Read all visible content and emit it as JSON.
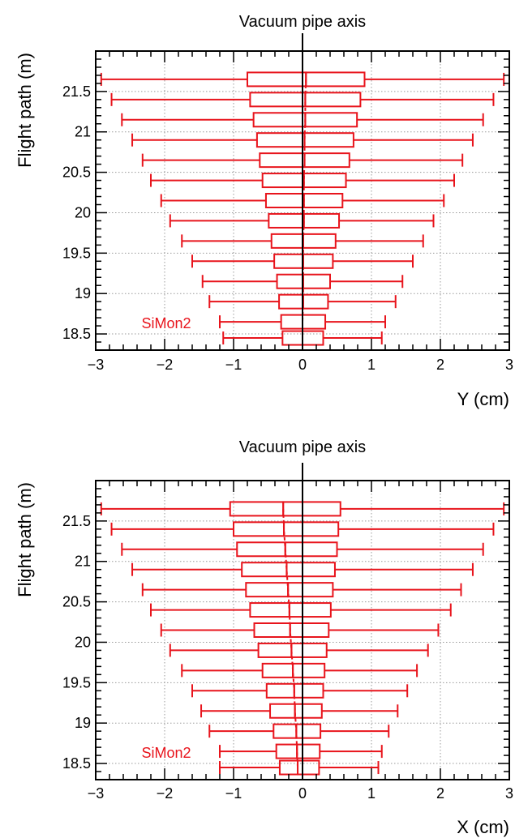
{
  "colors": {
    "series": "#e8141c",
    "axis": "#000000",
    "grid": "#9a9a9a"
  },
  "chart_data": [
    {
      "type": "box",
      "panel": "top",
      "annotation_top": "Vacuum pipe axis",
      "xlabel": "Y (cm)",
      "ylabel": "Flight path (m)",
      "xlim": [
        -3,
        3
      ],
      "ylim": [
        18.3,
        22.0
      ],
      "xticks": [
        -3,
        -2,
        -1,
        0,
        1,
        2,
        3
      ],
      "xtick_labels": [
        "−3",
        "−2",
        "−1",
        "0",
        "1",
        "2",
        "3"
      ],
      "yticks": [
        18.5,
        19,
        19.5,
        20,
        20.5,
        21,
        21.5
      ],
      "ytick_labels": [
        "18.5",
        "19",
        "19.5",
        "20",
        "20.5",
        "21",
        "21.5"
      ],
      "grid": true,
      "reference_line_x": 0,
      "series_label": "SiMon2",
      "boxes": [
        {
          "y": 21.65,
          "whisker_low": -2.92,
          "q1": -0.8,
          "median": 0.05,
          "q3": 0.9,
          "whisker_high": 2.92
        },
        {
          "y": 21.4,
          "whisker_low": -2.77,
          "q1": -0.76,
          "median": 0.04,
          "q3": 0.84,
          "whisker_high": 2.77
        },
        {
          "y": 21.15,
          "whisker_low": -2.62,
          "q1": -0.71,
          "median": 0.04,
          "q3": 0.79,
          "whisker_high": 2.62
        },
        {
          "y": 20.9,
          "whisker_low": -2.47,
          "q1": -0.66,
          "median": 0.03,
          "q3": 0.74,
          "whisker_high": 2.47
        },
        {
          "y": 20.65,
          "whisker_low": -2.32,
          "q1": -0.62,
          "median": 0.03,
          "q3": 0.68,
          "whisker_high": 2.32
        },
        {
          "y": 20.4,
          "whisker_low": -2.2,
          "q1": -0.58,
          "median": 0.02,
          "q3": 0.63,
          "whisker_high": 2.2
        },
        {
          "y": 20.15,
          "whisker_low": -2.05,
          "q1": -0.53,
          "median": 0.02,
          "q3": 0.58,
          "whisker_high": 2.05
        },
        {
          "y": 19.9,
          "whisker_low": -1.92,
          "q1": -0.49,
          "median": 0.02,
          "q3": 0.53,
          "whisker_high": 1.9
        },
        {
          "y": 19.65,
          "whisker_low": -1.75,
          "q1": -0.45,
          "median": 0.01,
          "q3": 0.48,
          "whisker_high": 1.75
        },
        {
          "y": 19.4,
          "whisker_low": -1.6,
          "q1": -0.41,
          "median": 0.01,
          "q3": 0.44,
          "whisker_high": 1.6
        },
        {
          "y": 19.15,
          "whisker_low": -1.45,
          "q1": -0.37,
          "median": 0.01,
          "q3": 0.4,
          "whisker_high": 1.45
        },
        {
          "y": 18.9,
          "whisker_low": -1.35,
          "q1": -0.34,
          "median": 0.01,
          "q3": 0.37,
          "whisker_high": 1.35
        },
        {
          "y": 18.65,
          "whisker_low": -1.2,
          "q1": -0.31,
          "median": 0.0,
          "q3": 0.33,
          "whisker_high": 1.2
        },
        {
          "y": 18.45,
          "whisker_low": -1.15,
          "q1": -0.29,
          "median": 0.0,
          "q3": 0.3,
          "whisker_high": 1.15
        }
      ]
    },
    {
      "type": "box",
      "panel": "bottom",
      "annotation_top": "Vacuum pipe axis",
      "xlabel": "X (cm)",
      "ylabel": "Flight path (m)",
      "xlim": [
        -3,
        3
      ],
      "ylim": [
        18.3,
        22.0
      ],
      "xticks": [
        -3,
        -2,
        -1,
        0,
        1,
        2,
        3
      ],
      "xtick_labels": [
        "−3",
        "−2",
        "−1",
        "0",
        "1",
        "2",
        "3"
      ],
      "yticks": [
        18.5,
        19,
        19.5,
        20,
        20.5,
        21,
        21.5
      ],
      "ytick_labels": [
        "18.5",
        "19",
        "19.5",
        "20",
        "20.5",
        "21",
        "21.5"
      ],
      "grid": true,
      "reference_line_x": 0,
      "series_label": "SiMon2",
      "boxes": [
        {
          "y": 21.65,
          "whisker_low": -2.92,
          "q1": -1.05,
          "median": -0.28,
          "q3": 0.55,
          "whisker_high": 2.92
        },
        {
          "y": 21.4,
          "whisker_low": -2.77,
          "q1": -1.0,
          "median": -0.27,
          "q3": 0.52,
          "whisker_high": 2.77
        },
        {
          "y": 21.15,
          "whisker_low": -2.62,
          "q1": -0.95,
          "median": -0.25,
          "q3": 0.5,
          "whisker_high": 2.62
        },
        {
          "y": 20.9,
          "whisker_low": -2.47,
          "q1": -0.88,
          "median": -0.23,
          "q3": 0.47,
          "whisker_high": 2.47
        },
        {
          "y": 20.65,
          "whisker_low": -2.32,
          "q1": -0.82,
          "median": -0.21,
          "q3": 0.44,
          "whisker_high": 2.3
        },
        {
          "y": 20.4,
          "whisker_low": -2.2,
          "q1": -0.76,
          "median": -0.19,
          "q3": 0.41,
          "whisker_high": 2.15
        },
        {
          "y": 20.15,
          "whisker_low": -2.05,
          "q1": -0.7,
          "median": -0.18,
          "q3": 0.38,
          "whisker_high": 1.97
        },
        {
          "y": 19.9,
          "whisker_low": -1.92,
          "q1": -0.64,
          "median": -0.16,
          "q3": 0.35,
          "whisker_high": 1.82
        },
        {
          "y": 19.65,
          "whisker_low": -1.75,
          "q1": -0.58,
          "median": -0.14,
          "q3": 0.32,
          "whisker_high": 1.66
        },
        {
          "y": 19.4,
          "whisker_low": -1.6,
          "q1": -0.52,
          "median": -0.12,
          "q3": 0.3,
          "whisker_high": 1.52
        },
        {
          "y": 19.15,
          "whisker_low": -1.47,
          "q1": -0.47,
          "median": -0.11,
          "q3": 0.28,
          "whisker_high": 1.38
        },
        {
          "y": 18.9,
          "whisker_low": -1.35,
          "q1": -0.42,
          "median": -0.09,
          "q3": 0.26,
          "whisker_high": 1.25
        },
        {
          "y": 18.65,
          "whisker_low": -1.2,
          "q1": -0.38,
          "median": -0.08,
          "q3": 0.25,
          "whisker_high": 1.15
        },
        {
          "y": 18.45,
          "whisker_low": -1.2,
          "q1": -0.33,
          "median": -0.07,
          "q3": 0.24,
          "whisker_high": 1.1
        }
      ]
    }
  ]
}
